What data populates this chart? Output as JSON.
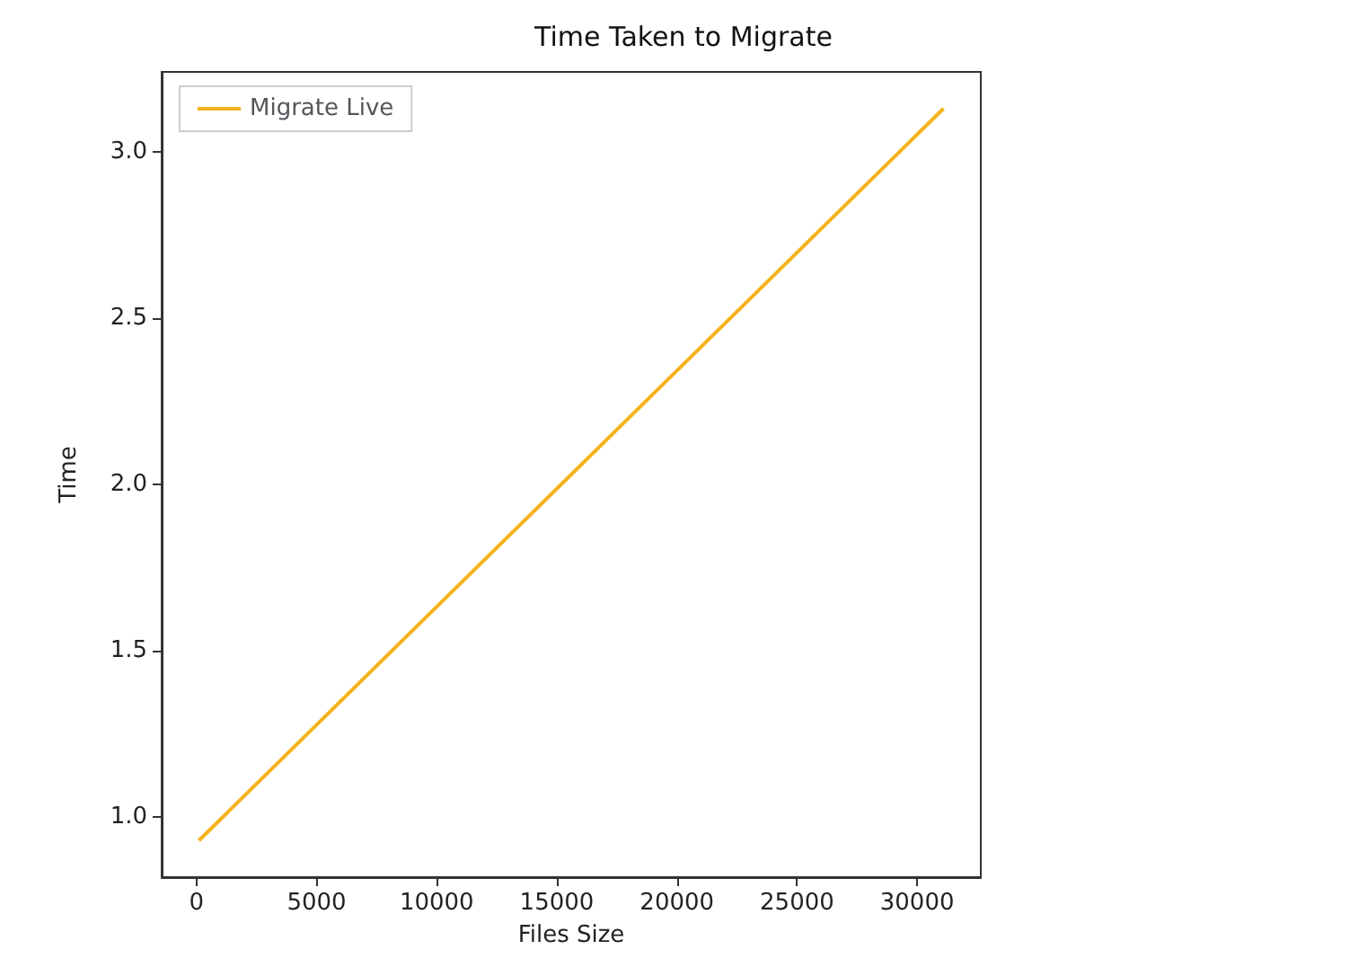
{
  "chart_data": {
    "type": "line",
    "title": "Time Taken to Migrate",
    "xlabel": "Files Size",
    "ylabel": "Time",
    "x": [
      100,
      15600,
      31100
    ],
    "series": [
      {
        "name": "Migrate Live",
        "color": "#f5b21b",
        "values": [
          0.93,
          2.03,
          3.13
        ]
      }
    ],
    "xlim": [
      -1450,
      32650
    ],
    "xticks": [
      0,
      5000,
      10000,
      15000,
      20000,
      25000,
      30000
    ],
    "ylim": [
      0.82,
      3.24
    ],
    "yticks": [
      {
        "value": 1,
        "label": "1.0"
      },
      1.5,
      {
        "value": 2,
        "label": "2.0"
      },
      2.5,
      {
        "value": 3,
        "label": "3.0"
      }
    ],
    "grid": false,
    "legend": "top left",
    "marker": "none",
    "line_style": "solid"
  }
}
